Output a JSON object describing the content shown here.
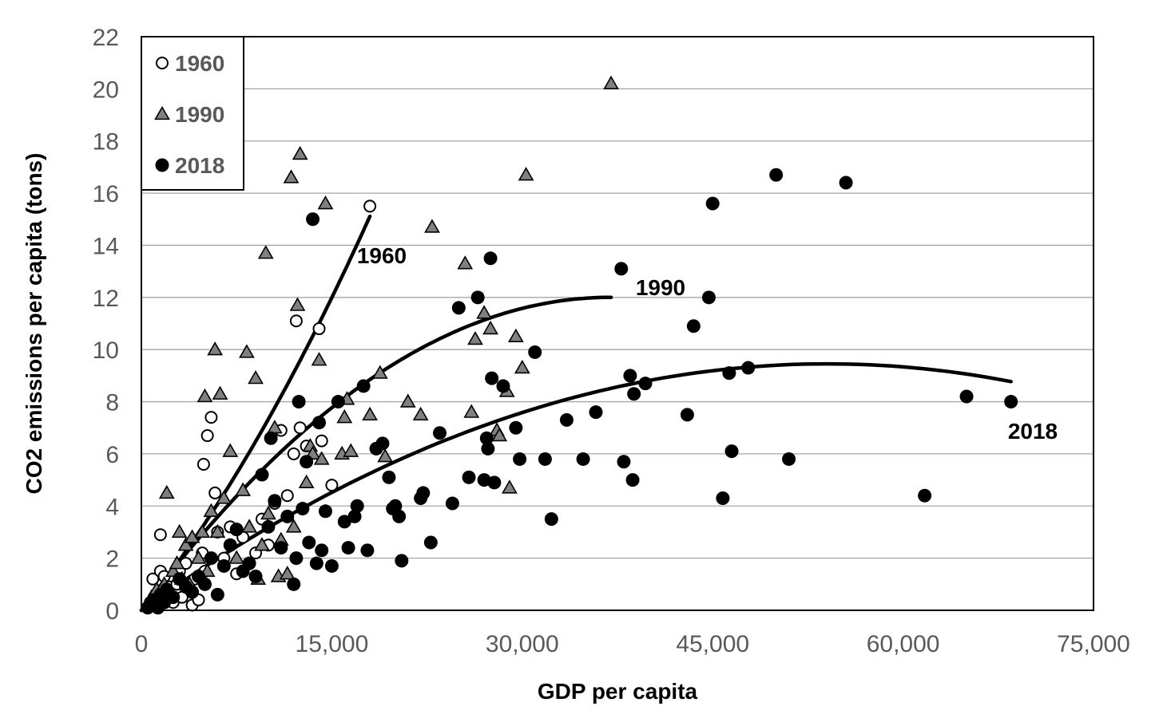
{
  "chart_data": {
    "type": "scatter",
    "title": "",
    "xlabel": "GDP per capita",
    "ylabel": "CO2 emissions per capita (tons)",
    "xlim": [
      0,
      75000
    ],
    "ylim": [
      0,
      22
    ],
    "x_ticks": [
      0,
      15000,
      30000,
      45000,
      60000,
      75000
    ],
    "x_tick_labels": [
      "0",
      "15,000",
      "30,000",
      "45,000",
      "60,000",
      "75,000"
    ],
    "y_ticks": [
      0,
      2,
      4,
      6,
      8,
      10,
      12,
      14,
      16,
      18,
      20,
      22
    ],
    "y_tick_labels": [
      "0",
      "2",
      "4",
      "6",
      "8",
      "10",
      "12",
      "14",
      "16",
      "18",
      "20",
      "22"
    ],
    "grid": "horizontal",
    "legend_position": "top-left",
    "series": [
      {
        "name": "1960",
        "marker": "open-circle",
        "color": "#000000",
        "points": [
          [
            500,
            0.1
          ],
          [
            700,
            0.3
          ],
          [
            900,
            1.2
          ],
          [
            1000,
            0.5
          ],
          [
            1200,
            0.2
          ],
          [
            1500,
            2.9
          ],
          [
            1500,
            1.5
          ],
          [
            1800,
            1.3
          ],
          [
            2000,
            0.6
          ],
          [
            2200,
            0.9
          ],
          [
            2500,
            0.3
          ],
          [
            2800,
            1.0
          ],
          [
            3000,
            1.5
          ],
          [
            3200,
            0.5
          ],
          [
            3500,
            1.8
          ],
          [
            3800,
            0.8
          ],
          [
            4000,
            0.2
          ],
          [
            4200,
            1.2
          ],
          [
            4500,
            0.4
          ],
          [
            4800,
            2.2
          ],
          [
            4900,
            5.6
          ],
          [
            5000,
            1.5
          ],
          [
            5200,
            6.7
          ],
          [
            5500,
            7.4
          ],
          [
            5800,
            4.5
          ],
          [
            6000,
            3.0
          ],
          [
            6500,
            2.0
          ],
          [
            7000,
            3.2
          ],
          [
            7500,
            1.4
          ],
          [
            8000,
            2.8
          ],
          [
            8500,
            1.8
          ],
          [
            9000,
            2.2
          ],
          [
            9500,
            3.5
          ],
          [
            10000,
            2.5
          ],
          [
            10500,
            4.1
          ],
          [
            11000,
            6.9
          ],
          [
            11500,
            4.4
          ],
          [
            12000,
            6.0
          ],
          [
            12200,
            11.1
          ],
          [
            12500,
            7.0
          ],
          [
            13000,
            6.3
          ],
          [
            14000,
            10.8
          ],
          [
            14200,
            6.5
          ],
          [
            15000,
            4.8
          ],
          [
            18000,
            15.5
          ]
        ]
      },
      {
        "name": "1990",
        "marker": "triangle",
        "color": "#808080",
        "points": [
          [
            600,
            0.2
          ],
          [
            800,
            0.5
          ],
          [
            1000,
            0.3
          ],
          [
            1200,
            0.8
          ],
          [
            1500,
            0.4
          ],
          [
            1800,
            1.0
          ],
          [
            2000,
            4.5
          ],
          [
            2200,
            0.6
          ],
          [
            2500,
            1.5
          ],
          [
            2800,
            1.8
          ],
          [
            3000,
            3.0
          ],
          [
            3200,
            1.2
          ],
          [
            3500,
            2.5
          ],
          [
            3800,
            1.0
          ],
          [
            4000,
            2.8
          ],
          [
            4500,
            2.0
          ],
          [
            4800,
            3.0
          ],
          [
            5000,
            8.2
          ],
          [
            5200,
            1.5
          ],
          [
            5500,
            3.8
          ],
          [
            5800,
            10.0
          ],
          [
            6000,
            3.0
          ],
          [
            6200,
            8.3
          ],
          [
            6500,
            4.3
          ],
          [
            7000,
            6.1
          ],
          [
            7500,
            2.0
          ],
          [
            8000,
            4.6
          ],
          [
            8300,
            9.9
          ],
          [
            8500,
            3.2
          ],
          [
            9000,
            8.9
          ],
          [
            9200,
            1.2
          ],
          [
            9500,
            2.5
          ],
          [
            9800,
            13.7
          ],
          [
            10000,
            3.7
          ],
          [
            10500,
            7.0
          ],
          [
            10800,
            1.3
          ],
          [
            11000,
            2.7
          ],
          [
            11500,
            1.4
          ],
          [
            11800,
            16.6
          ],
          [
            12000,
            3.2
          ],
          [
            12300,
            11.7
          ],
          [
            12500,
            17.5
          ],
          [
            13000,
            4.9
          ],
          [
            13300,
            6.3
          ],
          [
            13500,
            6.0
          ],
          [
            14000,
            9.6
          ],
          [
            14200,
            5.8
          ],
          [
            14500,
            15.6
          ],
          [
            15800,
            6.0
          ],
          [
            16000,
            7.4
          ],
          [
            16200,
            8.1
          ],
          [
            16500,
            6.1
          ],
          [
            18000,
            7.5
          ],
          [
            18800,
            9.1
          ],
          [
            19200,
            5.9
          ],
          [
            21000,
            8.0
          ],
          [
            22000,
            7.5
          ],
          [
            22900,
            14.7
          ],
          [
            25500,
            13.3
          ],
          [
            26000,
            7.6
          ],
          [
            26300,
            10.4
          ],
          [
            27000,
            11.4
          ],
          [
            27500,
            10.8
          ],
          [
            28000,
            6.9
          ],
          [
            28200,
            6.7
          ],
          [
            28800,
            8.4
          ],
          [
            29500,
            10.5
          ],
          [
            29000,
            4.7
          ],
          [
            30000,
            9.3
          ],
          [
            30300,
            16.7
          ],
          [
            37000,
            20.2
          ]
        ]
      },
      {
        "name": "2018",
        "marker": "filled-circle",
        "color": "#000000",
        "points": [
          [
            500,
            0.1
          ],
          [
            800,
            0.2
          ],
          [
            1000,
            0.4
          ],
          [
            1300,
            0.1
          ],
          [
            1500,
            0.6
          ],
          [
            1800,
            0.3
          ],
          [
            2000,
            0.8
          ],
          [
            2500,
            0.5
          ],
          [
            3000,
            1.2
          ],
          [
            3500,
            0.9
          ],
          [
            4000,
            0.7
          ],
          [
            4500,
            1.3
          ],
          [
            5000,
            1.0
          ],
          [
            5500,
            2.0
          ],
          [
            6000,
            0.6
          ],
          [
            6500,
            1.7
          ],
          [
            7000,
            2.5
          ],
          [
            7500,
            3.1
          ],
          [
            8000,
            1.5
          ],
          [
            8500,
            1.8
          ],
          [
            9000,
            1.3
          ],
          [
            9500,
            5.2
          ],
          [
            10000,
            3.2
          ],
          [
            10200,
            6.6
          ],
          [
            10500,
            4.2
          ],
          [
            11000,
            2.4
          ],
          [
            11500,
            3.6
          ],
          [
            12000,
            1.0
          ],
          [
            12200,
            2.0
          ],
          [
            12400,
            8.0
          ],
          [
            12700,
            3.9
          ],
          [
            13000,
            5.7
          ],
          [
            13200,
            2.6
          ],
          [
            13500,
            15.0
          ],
          [
            13800,
            1.8
          ],
          [
            14000,
            7.2
          ],
          [
            14200,
            2.3
          ],
          [
            14500,
            3.8
          ],
          [
            15000,
            1.7
          ],
          [
            15500,
            8.0
          ],
          [
            16000,
            3.4
          ],
          [
            16300,
            2.4
          ],
          [
            16800,
            3.6
          ],
          [
            17000,
            4.0
          ],
          [
            17500,
            8.6
          ],
          [
            17800,
            2.3
          ],
          [
            18500,
            6.2
          ],
          [
            19000,
            6.4
          ],
          [
            19500,
            5.1
          ],
          [
            19800,
            3.9
          ],
          [
            20000,
            4.0
          ],
          [
            20300,
            3.6
          ],
          [
            20500,
            1.9
          ],
          [
            22000,
            4.3
          ],
          [
            22200,
            4.5
          ],
          [
            22800,
            2.6
          ],
          [
            23500,
            6.8
          ],
          [
            24500,
            4.1
          ],
          [
            25000,
            11.6
          ],
          [
            25800,
            5.1
          ],
          [
            26500,
            12.0
          ],
          [
            27000,
            5.0
          ],
          [
            27200,
            6.6
          ],
          [
            27300,
            6.2
          ],
          [
            27500,
            13.5
          ],
          [
            27600,
            8.9
          ],
          [
            27800,
            4.9
          ],
          [
            28500,
            8.6
          ],
          [
            29500,
            7.0
          ],
          [
            29800,
            5.8
          ],
          [
            31000,
            9.9
          ],
          [
            31800,
            5.8
          ],
          [
            32300,
            3.5
          ],
          [
            33500,
            7.3
          ],
          [
            34800,
            5.8
          ],
          [
            35800,
            7.6
          ],
          [
            37800,
            13.1
          ],
          [
            38000,
            5.7
          ],
          [
            38500,
            9.0
          ],
          [
            38700,
            5.0
          ],
          [
            38800,
            8.3
          ],
          [
            39700,
            8.7
          ],
          [
            43000,
            7.5
          ],
          [
            43500,
            10.9
          ],
          [
            44700,
            12.0
          ],
          [
            45000,
            15.6
          ],
          [
            45800,
            4.3
          ],
          [
            46300,
            9.1
          ],
          [
            46500,
            6.1
          ],
          [
            47800,
            9.3
          ],
          [
            50000,
            16.7
          ],
          [
            51000,
            5.8
          ],
          [
            55500,
            16.4
          ],
          [
            61700,
            4.4
          ],
          [
            65000,
            8.2
          ],
          [
            68500,
            8.0
          ]
        ]
      }
    ],
    "trendlines": [
      {
        "name": "1960",
        "label": "1960",
        "type": "polynomial-2",
        "coeffs": [
          0.0,
          0.0006,
          1.33e-08
        ],
        "x_range": [
          0,
          18000
        ]
      },
      {
        "name": "1990",
        "label": "1990",
        "type": "polynomial-2",
        "coeffs": [
          0.0,
          0.00065,
          -8.8e-09
        ],
        "x_range": [
          0,
          37000
        ]
      },
      {
        "name": "2018",
        "label": "2018",
        "type": "polynomial-2",
        "coeffs": [
          0.0,
          0.00035,
          -3.24e-09
        ],
        "x_range": [
          0,
          68500
        ]
      }
    ]
  }
}
